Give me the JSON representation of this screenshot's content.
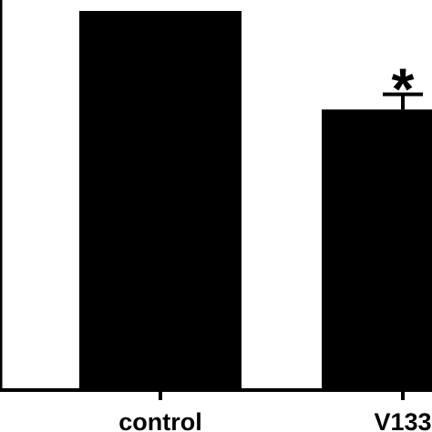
{
  "chart_data": {
    "type": "bar",
    "categories": [
      "control",
      "V133"
    ],
    "values": [
      100,
      74
    ],
    "error_upper": [
      null,
      4
    ],
    "annotations": [
      {
        "category": "V133",
        "text": "*"
      }
    ],
    "ylim": [
      0,
      100
    ],
    "grid": false,
    "colors": {
      "bar": "#000000",
      "axis": "#000000",
      "background": "#ffffff"
    }
  }
}
